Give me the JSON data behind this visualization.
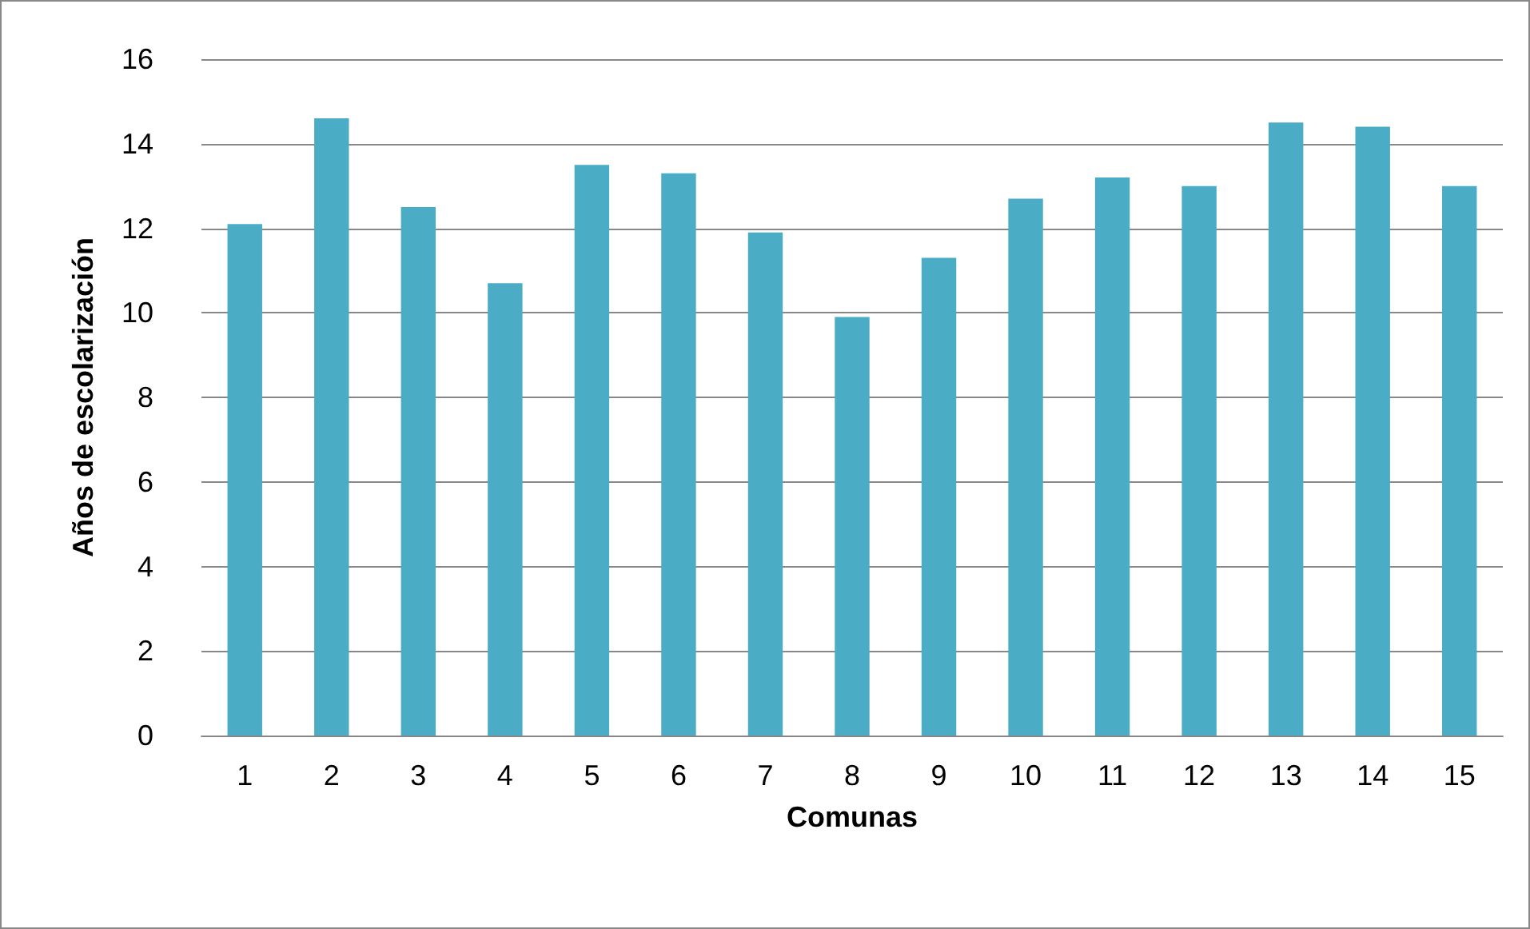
{
  "chart_data": {
    "type": "bar",
    "xlabel": "Comunas",
    "ylabel": "Años de escolarización",
    "categories": [
      "1",
      "2",
      "3",
      "4",
      "5",
      "6",
      "7",
      "8",
      "9",
      "10",
      "11",
      "12",
      "13",
      "14",
      "15"
    ],
    "values": [
      12.1,
      14.6,
      12.5,
      10.7,
      13.5,
      13.3,
      11.9,
      9.9,
      11.3,
      12.7,
      13.2,
      13.0,
      14.5,
      14.4,
      13.0
    ],
    "color": "#4bacc6",
    "ylim": [
      0,
      16
    ],
    "yticks": [
      0,
      2,
      4,
      6,
      8,
      10,
      12,
      14,
      16
    ],
    "grid": "y"
  }
}
